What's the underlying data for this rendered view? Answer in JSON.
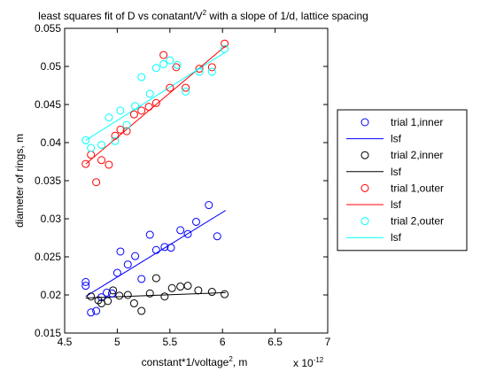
{
  "chart_data": {
    "type": "scatter",
    "title_main": "least squares fit of D vs conatant/V",
    "title_sup": "2",
    "title_rest": " with a slope of 1/d, lattice spacing",
    "xlabel_main": "constant*1/voltage",
    "xlabel_sup": "2",
    "xlabel_rest": ", m",
    "x_multiplier_base": "x 10",
    "x_multiplier_exp": "-12",
    "ylabel": "diameter of rings, m",
    "xlim": [
      4.5,
      7
    ],
    "ylim": [
      0.015,
      0.055
    ],
    "x_ticks": [
      "4.5",
      "5",
      "5.5",
      "6",
      "6.5",
      "7"
    ],
    "y_ticks": [
      "0.015",
      "0.02",
      "0.025",
      "0.03",
      "0.035",
      "0.04",
      "0.045",
      "0.05",
      "0.055"
    ],
    "grid": false,
    "legend_position": "outside-right",
    "series": [
      {
        "name": "trial 1,inner",
        "kind": "markers",
        "color": "#0000ff",
        "points": [
          [
            4.7,
            0.0217
          ],
          [
            4.7,
            0.0212
          ],
          [
            4.75,
            0.0177
          ],
          [
            4.8,
            0.0179
          ],
          [
            4.85,
            0.0197
          ],
          [
            4.9,
            0.0203
          ],
          [
            4.95,
            0.0202
          ],
          [
            5.0,
            0.0229
          ],
          [
            5.03,
            0.0257
          ],
          [
            5.1,
            0.024
          ],
          [
            5.17,
            0.0251
          ],
          [
            5.23,
            0.0221
          ],
          [
            5.31,
            0.0279
          ],
          [
            5.37,
            0.0259
          ],
          [
            5.45,
            0.0263
          ],
          [
            5.51,
            0.0262
          ],
          [
            5.6,
            0.0285
          ],
          [
            5.67,
            0.028
          ],
          [
            5.75,
            0.0296
          ],
          [
            5.87,
            0.0318
          ],
          [
            5.95,
            0.0277
          ]
        ]
      },
      {
        "name": "lsf",
        "kind": "line",
        "color": "#0000ff",
        "points": [
          [
            4.7,
            0.0198
          ],
          [
            6.03,
            0.0311
          ]
        ]
      },
      {
        "name": "trial 2,inner",
        "kind": "markers",
        "color": "#000000",
        "points": [
          [
            4.75,
            0.0198
          ],
          [
            4.82,
            0.0193
          ],
          [
            4.85,
            0.0189
          ],
          [
            4.91,
            0.0192
          ],
          [
            4.96,
            0.0206
          ],
          [
            5.02,
            0.0199
          ],
          [
            5.1,
            0.02
          ],
          [
            5.16,
            0.0189
          ],
          [
            5.23,
            0.0179
          ],
          [
            5.31,
            0.0202
          ],
          [
            5.37,
            0.0222
          ],
          [
            5.45,
            0.0198
          ],
          [
            5.52,
            0.0209
          ],
          [
            5.6,
            0.0211
          ],
          [
            5.67,
            0.0212
          ],
          [
            5.77,
            0.0206
          ],
          [
            5.9,
            0.0204
          ],
          [
            6.02,
            0.0201
          ]
        ]
      },
      {
        "name": "lsf",
        "kind": "line",
        "color": "#000000",
        "points": [
          [
            4.7,
            0.0196
          ],
          [
            6.03,
            0.0203
          ]
        ]
      },
      {
        "name": "trial 1,outer",
        "kind": "markers",
        "color": "#ff0000",
        "points": [
          [
            4.7,
            0.0372
          ],
          [
            4.75,
            0.0384
          ],
          [
            4.8,
            0.0348
          ],
          [
            4.85,
            0.0377
          ],
          [
            4.92,
            0.0371
          ],
          [
            4.98,
            0.0409
          ],
          [
            5.03,
            0.0417
          ],
          [
            5.09,
            0.0415
          ],
          [
            5.16,
            0.0437
          ],
          [
            5.23,
            0.0442
          ],
          [
            5.3,
            0.0447
          ],
          [
            5.37,
            0.0452
          ],
          [
            5.44,
            0.0515
          ],
          [
            5.5,
            0.0472
          ],
          [
            5.56,
            0.0499
          ],
          [
            5.65,
            0.0472
          ],
          [
            5.78,
            0.0497
          ],
          [
            5.9,
            0.0499
          ],
          [
            6.02,
            0.053
          ]
        ]
      },
      {
        "name": "lsf",
        "kind": "line",
        "color": "#ff0000",
        "points": [
          [
            4.7,
            0.0372
          ],
          [
            6.03,
            0.0527
          ]
        ]
      },
      {
        "name": "trial 2,outer",
        "kind": "markers",
        "color": "#00ffff",
        "points": [
          [
            4.7,
            0.0403
          ],
          [
            4.75,
            0.0393
          ],
          [
            4.85,
            0.0397
          ],
          [
            4.92,
            0.0433
          ],
          [
            4.98,
            0.0402
          ],
          [
            5.03,
            0.0442
          ],
          [
            5.09,
            0.0423
          ],
          [
            5.17,
            0.0448
          ],
          [
            5.23,
            0.0486
          ],
          [
            5.31,
            0.0464
          ],
          [
            5.37,
            0.0498
          ],
          [
            5.44,
            0.0503
          ],
          [
            5.5,
            0.0508
          ],
          [
            5.57,
            0.0502
          ],
          [
            5.65,
            0.0467
          ],
          [
            5.78,
            0.0493
          ],
          [
            5.9,
            0.0493
          ],
          [
            6.02,
            0.0523
          ]
        ]
      },
      {
        "name": "lsf",
        "kind": "line",
        "color": "#00ffff",
        "points": [
          [
            4.7,
            0.0403
          ],
          [
            6.03,
            0.0519
          ]
        ]
      }
    ]
  }
}
